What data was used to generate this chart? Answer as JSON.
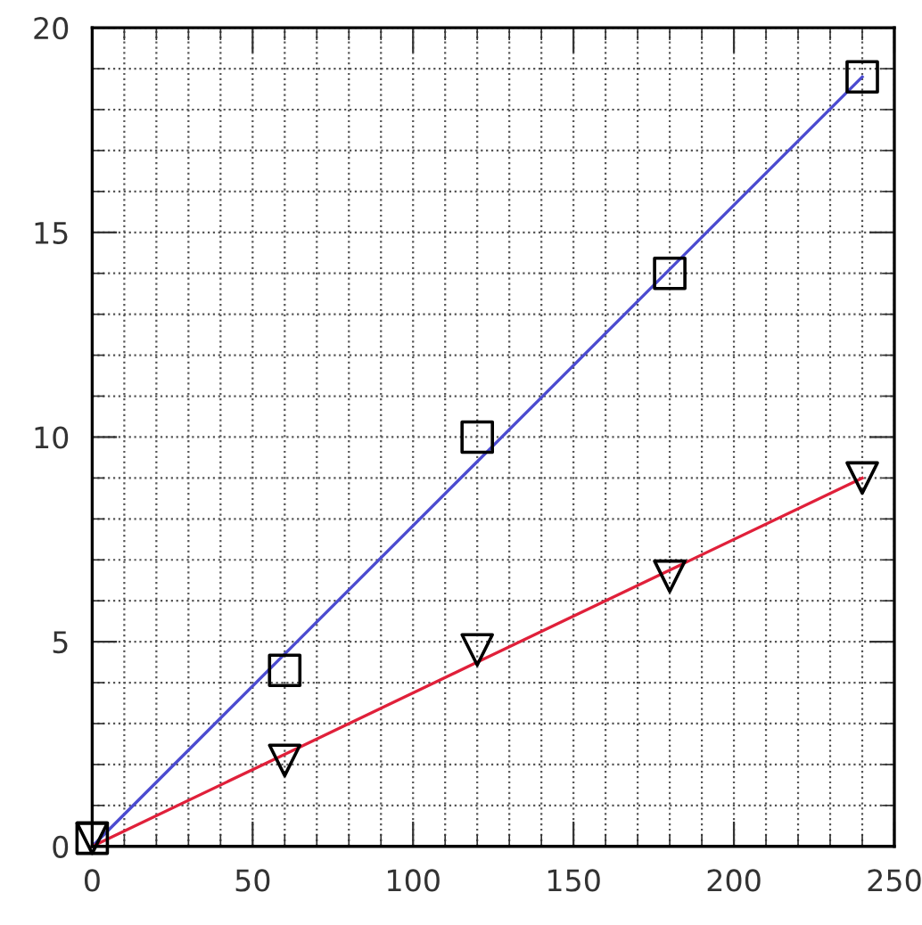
{
  "chart_data": {
    "type": "scatter",
    "x": [
      0,
      60,
      120,
      180,
      240
    ],
    "series": [
      {
        "color": "#000000",
        "marker": "square",
        "values": [
          0.2,
          4.3,
          10,
          14,
          18.8
        ]
      },
      {
        "color": "#000000",
        "marker": "triangle",
        "values": [
          0.2,
          2.1,
          4.8,
          6.6,
          9.0
        ]
      },
      {
        "type": "line",
        "color": "#4b4bd0",
        "values": [
          0,
          4.7,
          9.4,
          14.1,
          18.8
        ]
      },
      {
        "type": "line",
        "color": "#e0203a",
        "values": [
          0,
          2.25,
          4.5,
          6.75,
          9.0
        ]
      }
    ],
    "xlim": [
      0,
      250
    ],
    "ylim": [
      0,
      20
    ],
    "xticks": [
      0,
      50,
      100,
      150,
      200,
      250
    ],
    "yticks": [
      0,
      5,
      10,
      15,
      20
    ],
    "grid": true,
    "line_style": "solid"
  }
}
